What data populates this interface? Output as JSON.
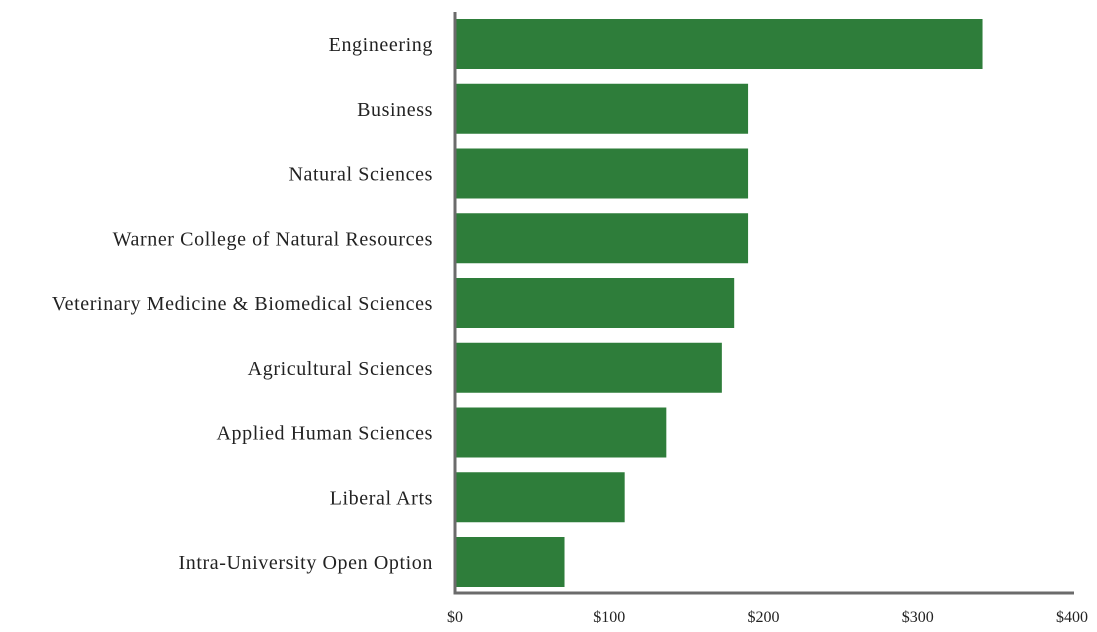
{
  "chart_data": {
    "type": "bar",
    "orientation": "horizontal",
    "categories": [
      "Engineering",
      "Business",
      "Natural Sciences",
      "Warner College of Natural Resources",
      "Veterinary Medicine & Biomedical Sciences",
      "Agricultural Sciences",
      "Applied Human Sciences",
      "Liberal Arts",
      "Intra-University Open Option"
    ],
    "values": [
      342,
      190,
      190,
      190,
      181,
      173,
      137,
      110,
      71
    ],
    "xlim": [
      0,
      400
    ],
    "xticks": [
      0,
      100,
      200,
      300,
      400
    ],
    "xtick_labels": [
      "$0",
      "$100",
      "$200",
      "$300",
      "$400"
    ],
    "title": "",
    "xlabel": "",
    "ylabel": "",
    "grid": false,
    "legend": "none",
    "bar_color": "#2e7d3a",
    "axis_color": "#6b6b6b"
  }
}
